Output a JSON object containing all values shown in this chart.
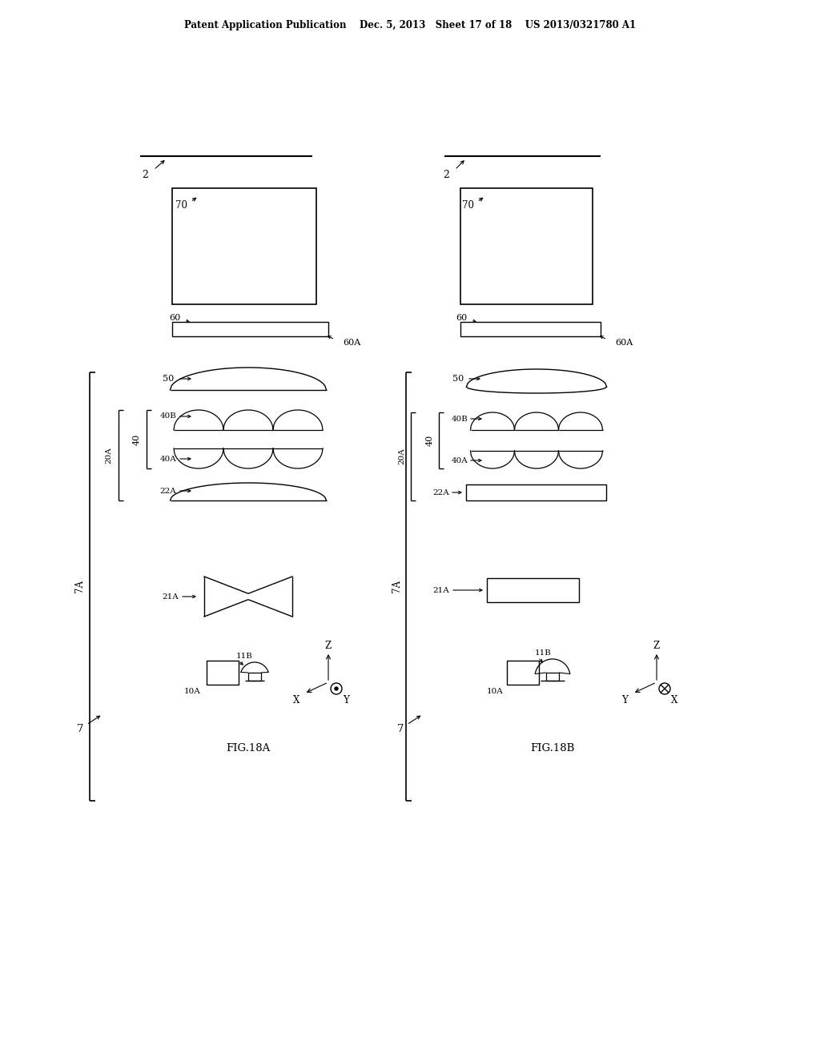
{
  "bg_color": "#ffffff",
  "header": "Patent Application Publication    Dec. 5, 2013   Sheet 17 of 18    US 2013/0321780 A1",
  "fig_A": "FIG.18A",
  "fig_B": "FIG.18B"
}
